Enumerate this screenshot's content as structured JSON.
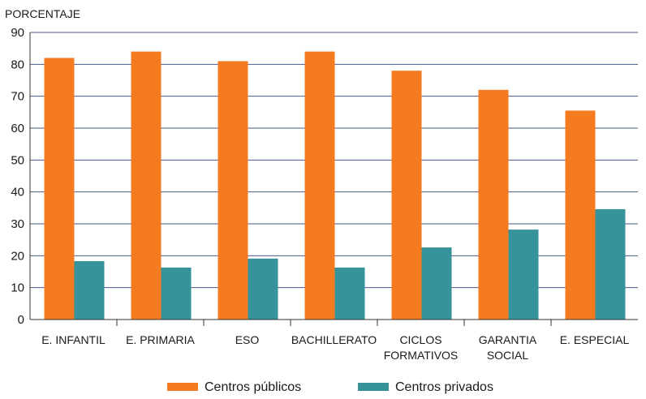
{
  "chart_data": {
    "type": "bar",
    "title": "",
    "xlabel": "",
    "ylabel": "PORCENTAJE",
    "ylim": [
      0,
      90
    ],
    "yticks": [
      0,
      10,
      20,
      30,
      40,
      50,
      60,
      70,
      80,
      90
    ],
    "grid": true,
    "legend_position": "bottom",
    "categories": [
      [
        "E. INFANTIL"
      ],
      [
        "E. PRIMARIA"
      ],
      [
        "ESO"
      ],
      [
        "BACHILLERATO"
      ],
      [
        "CICLOS",
        "FORMATIVOS"
      ],
      [
        "GARANTIA",
        "SOCIAL"
      ],
      [
        "E. ESPECIAL"
      ]
    ],
    "series": [
      {
        "name": "Centros públicos",
        "color": "#F47B20",
        "values": [
          82,
          84,
          81,
          84,
          78,
          72,
          65.5
        ]
      },
      {
        "name": "Centros privados",
        "color": "#36939B",
        "values": [
          18.3,
          16.3,
          19.1,
          16.3,
          22.6,
          28.2,
          34.6
        ]
      }
    ]
  }
}
